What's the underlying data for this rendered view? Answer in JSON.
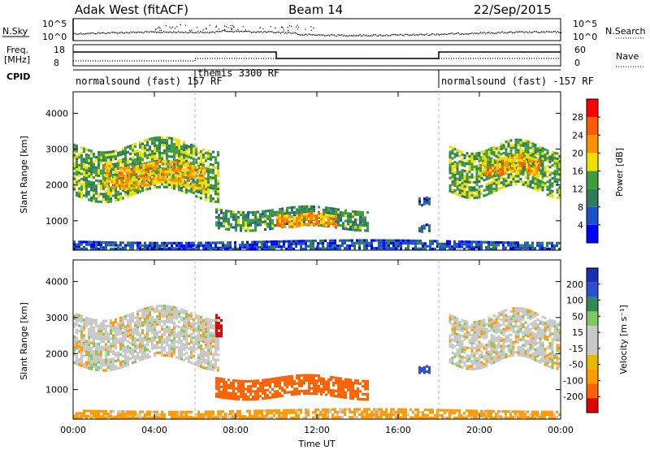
{
  "header": {
    "station": "Adak West (fitACF)",
    "beam": "Beam 14",
    "date": "22/Sep/2015"
  },
  "top_panels": {
    "nsky_label": "N.Sky",
    "nsearch_label": "N.Search",
    "freq_label": "Freq.",
    "freq_unit": "[MHz]",
    "nave_label": "Nave",
    "cpid_label": "CPID",
    "nsky_ticks": [
      "10^5",
      "10^0"
    ],
    "nsearch_ticks": [
      "10^5",
      "10^0"
    ],
    "freq_ticks": [
      "18",
      "8"
    ],
    "nave_ticks": [
      "60",
      "0"
    ]
  },
  "cpid_modes": [
    {
      "start_hour": 0,
      "label": "normalsound (fast) 157 RF"
    },
    {
      "start_hour": 6,
      "label": "themis 3300 RF"
    },
    {
      "start_hour": 18,
      "label": "normalsound (fast) -157 RF"
    }
  ],
  "colors": {
    "power": [
      "#0000ff",
      "#1a4fd0",
      "#2e7d5a",
      "#3f9b3f",
      "#f0e000",
      "#ff9000",
      "#ff5a00",
      "#ff0000"
    ],
    "velocity": [
      "#e00000",
      "#ff6000",
      "#ff9a00",
      "#e8b800",
      "#c8c8c8",
      "#c8c8c8",
      "#80c860",
      "#2e8b57",
      "#2a4fd0",
      "#1a2fb8"
    ]
  },
  "chart_data": [
    {
      "type": "heatmap",
      "name": "Power",
      "xlabel": "",
      "ylabel": "Slant Range [km]",
      "xlim": [
        0,
        24
      ],
      "ylim": [
        180,
        4600
      ],
      "yticks": [
        1000,
        2000,
        3000,
        4000
      ],
      "colorbar_label": "Power [dB]",
      "colorbar_ticks": [
        4,
        8,
        12,
        16,
        20,
        24,
        28
      ],
      "colorbar_range": [
        0,
        32
      ],
      "regions": [
        {
          "x": [
            0,
            7.2
          ],
          "y": [
            1750,
            3150
          ],
          "level": 14
        },
        {
          "x": [
            1.5,
            6.5
          ],
          "y": [
            2000,
            2600
          ],
          "level": 20
        },
        {
          "x": [
            7,
            14.5
          ],
          "y": [
            800,
            1350
          ],
          "level": 12
        },
        {
          "x": [
            10,
            13
          ],
          "y": [
            900,
            1200
          ],
          "level": 22
        },
        {
          "x": [
            18.5,
            24
          ],
          "y": [
            1800,
            3100
          ],
          "level": 14
        },
        {
          "x": [
            20,
            23
          ],
          "y": [
            2300,
            2800
          ],
          "level": 20
        },
        {
          "x": [
            0,
            24
          ],
          "y": [
            200,
            450
          ],
          "level": 6
        },
        {
          "x": [
            17,
            17.6
          ],
          "y": [
            1450,
            1650
          ],
          "level": 6
        },
        {
          "x": [
            17,
            17.6
          ],
          "y": [
            750,
            900
          ],
          "level": 6
        }
      ]
    },
    {
      "type": "heatmap",
      "name": "Velocity",
      "xlabel": "Time UT",
      "ylabel": "Slant Range [km]",
      "xlim": [
        0,
        24
      ],
      "ylim": [
        180,
        4600
      ],
      "yticks": [
        1000,
        2000,
        3000,
        4000
      ],
      "xticks": [
        "00:00",
        "04:00",
        "08:00",
        "12:00",
        "16:00",
        "20:00",
        "00:00"
      ],
      "colorbar_label": "Velocity [m s⁻¹]",
      "colorbar_ticks": [
        "200",
        "100",
        "50",
        "15",
        "-15",
        "-50",
        "-100",
        "-200"
      ],
      "regions": [
        {
          "x": [
            0,
            7.2
          ],
          "y": [
            1750,
            3150
          ],
          "velocity": 0
        },
        {
          "x": [
            7,
            14.5
          ],
          "y": [
            800,
            1350
          ],
          "velocity": -70
        },
        {
          "x": [
            18.5,
            24
          ],
          "y": [
            1800,
            3100
          ],
          "velocity": 0
        },
        {
          "x": [
            0,
            24
          ],
          "y": [
            200,
            450
          ],
          "velocity": -30
        },
        {
          "x": [
            17,
            17.6
          ],
          "y": [
            1450,
            1650
          ],
          "velocity": 150
        },
        {
          "x": [
            7.0,
            7.3
          ],
          "y": [
            2500,
            3100
          ],
          "velocity": -250
        }
      ]
    }
  ]
}
